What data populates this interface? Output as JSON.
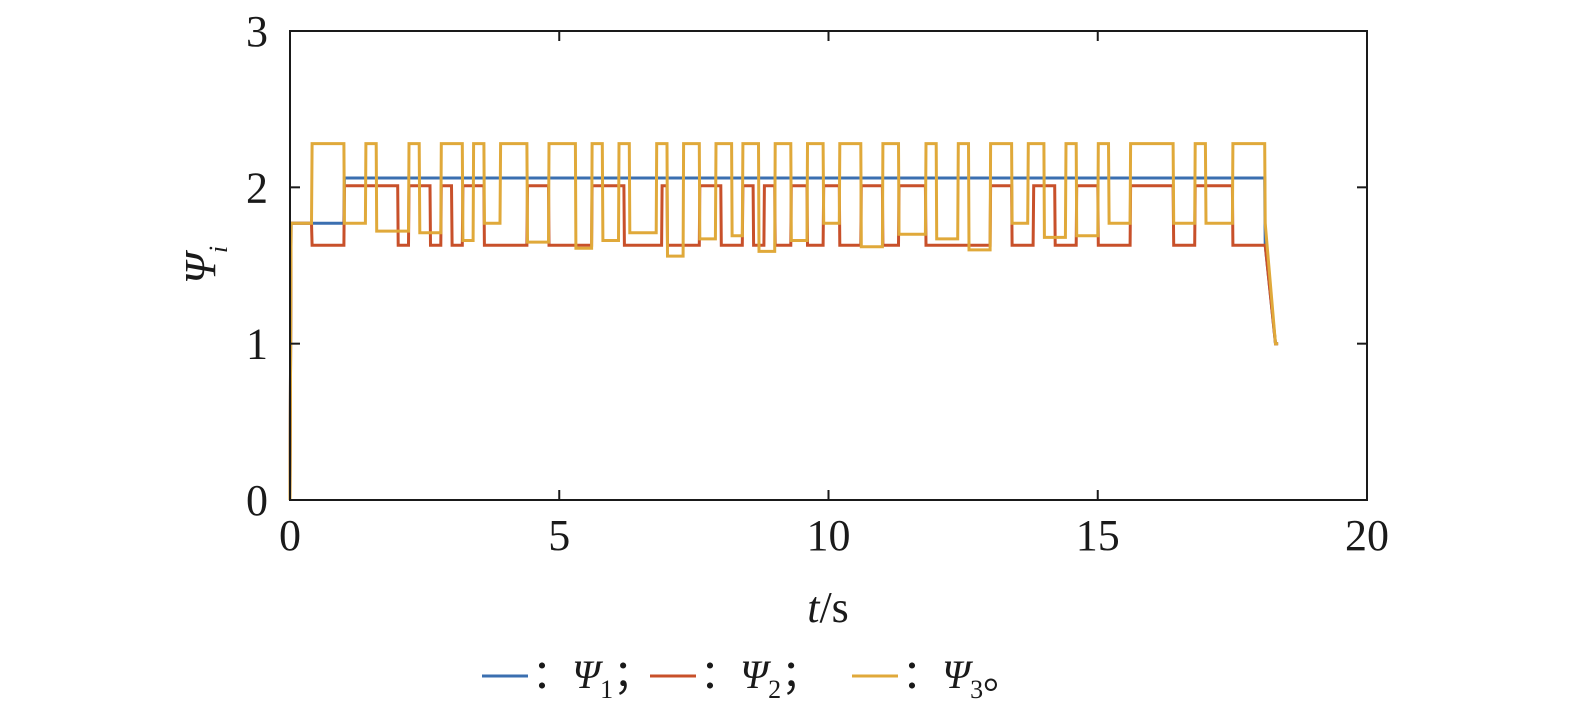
{
  "chart_data": {
    "type": "line",
    "ylabel": {
      "symbol": "Ψ",
      "sub": "i"
    },
    "xlabel": {
      "var": "t",
      "unit": "/s"
    },
    "xlim": [
      0,
      20
    ],
    "ylim": [
      0,
      3
    ],
    "xticks": [
      "0",
      "5",
      "10",
      "15",
      "20"
    ],
    "yticks": [
      "0",
      "1",
      "2",
      "3"
    ],
    "grid": false,
    "legend_position": "bottom-center",
    "series": [
      {
        "name": "Ψ1",
        "color": "#3b6fb0",
        "legend": {
          "prefix": "：",
          "symbol": "Ψ",
          "sub": "1",
          "suffix": "；"
        },
        "x": [
          0,
          0.02,
          0.4,
          1.0,
          1.01,
          2.0,
          2.01,
          2.6,
          2.61,
          3.0,
          3.01,
          3.6,
          3.61,
          4.8,
          4.81,
          6.2,
          6.21,
          7.0,
          7.01,
          8.0,
          8.01,
          8.6,
          8.61,
          9.0,
          9.01,
          9.6,
          9.61,
          9.9,
          9.91,
          10.2,
          10.21,
          11.8,
          11.81,
          13.0,
          13.01,
          13.4,
          13.41,
          14.2,
          14.21,
          15.0,
          15.01,
          15.6,
          15.61,
          16.8,
          16.81,
          17.5,
          17.51,
          18.1,
          18.11,
          18.3,
          18.35
        ],
        "y": [
          0,
          1.77,
          1.77,
          1.77,
          2.06,
          2.06,
          2.06,
          2.06,
          2.06,
          2.06,
          2.06,
          2.06,
          2.06,
          2.06,
          2.06,
          2.06,
          2.06,
          2.06,
          2.06,
          2.06,
          2.06,
          2.06,
          2.06,
          2.06,
          2.06,
          2.06,
          2.06,
          2.06,
          2.06,
          2.06,
          2.06,
          2.06,
          2.06,
          2.06,
          2.06,
          2.06,
          2.06,
          2.06,
          2.06,
          2.06,
          2.06,
          2.06,
          2.06,
          2.06,
          2.06,
          2.06,
          2.06,
          2.06,
          1.63,
          1.0,
          1.0
        ]
      },
      {
        "name": "Ψ2",
        "color": "#c8502a",
        "legend": {
          "prefix": "：",
          "symbol": "Ψ",
          "sub": "2",
          "suffix": "；"
        },
        "x": [
          0,
          0.02,
          0.4,
          0.41,
          1.0,
          1.01,
          2.0,
          2.01,
          2.2,
          2.21,
          2.6,
          2.61,
          2.8,
          2.81,
          3.0,
          3.01,
          3.2,
          3.21,
          3.6,
          3.61,
          4.4,
          4.41,
          4.8,
          4.81,
          5.6,
          5.61,
          6.2,
          6.21,
          6.9,
          6.91,
          7.0,
          7.01,
          7.6,
          7.61,
          8.0,
          8.01,
          8.4,
          8.41,
          8.6,
          8.61,
          8.8,
          8.81,
          9.0,
          9.01,
          9.3,
          9.31,
          9.6,
          9.61,
          9.9,
          9.91,
          10.2,
          10.21,
          10.6,
          10.61,
          11.0,
          11.01,
          11.3,
          11.31,
          11.8,
          11.81,
          13.0,
          13.01,
          13.4,
          13.41,
          13.8,
          13.81,
          14.2,
          14.21,
          14.6,
          14.61,
          15.0,
          15.01,
          15.6,
          15.61,
          16.4,
          16.41,
          16.8,
          16.81,
          17.5,
          17.51,
          18.1,
          18.11,
          18.3,
          18.35
        ],
        "y": [
          0,
          1.77,
          1.77,
          1.63,
          1.63,
          2.01,
          2.01,
          1.63,
          1.63,
          2.01,
          2.01,
          1.63,
          1.63,
          2.01,
          2.01,
          1.63,
          1.63,
          2.01,
          2.01,
          1.63,
          1.63,
          2.01,
          2.01,
          1.63,
          1.63,
          2.01,
          2.01,
          1.63,
          1.63,
          2.01,
          2.01,
          1.63,
          1.63,
          2.01,
          2.01,
          1.63,
          1.63,
          2.01,
          2.01,
          1.63,
          1.63,
          2.01,
          2.01,
          1.63,
          1.63,
          2.01,
          2.01,
          1.63,
          1.63,
          2.01,
          2.01,
          1.63,
          1.63,
          2.01,
          2.01,
          1.63,
          1.63,
          2.01,
          2.01,
          1.63,
          1.63,
          2.01,
          2.01,
          1.63,
          1.63,
          2.01,
          2.01,
          1.63,
          1.63,
          2.01,
          2.01,
          1.63,
          1.63,
          2.01,
          2.01,
          1.63,
          1.63,
          2.01,
          2.01,
          1.63,
          1.63,
          1.63,
          1.0,
          1.0
        ]
      },
      {
        "name": "Ψ3",
        "color": "#e0a93a",
        "legend": {
          "prefix": "：",
          "symbol": "Ψ",
          "sub": "3",
          "suffix": "。"
        },
        "x": [
          0,
          0.02,
          0.4,
          0.41,
          1.0,
          1.01,
          1.4,
          1.41,
          1.6,
          1.61,
          2.2,
          2.21,
          2.4,
          2.41,
          2.8,
          2.81,
          3.2,
          3.21,
          3.4,
          3.41,
          3.6,
          3.61,
          3.9,
          3.91,
          4.4,
          4.41,
          4.8,
          4.81,
          5.3,
          5.31,
          5.6,
          5.61,
          5.8,
          5.81,
          6.1,
          6.11,
          6.3,
          6.31,
          6.8,
          6.81,
          7.0,
          7.01,
          7.3,
          7.31,
          7.6,
          7.61,
          7.9,
          7.91,
          8.2,
          8.21,
          8.4,
          8.41,
          8.7,
          8.71,
          9.0,
          9.01,
          9.3,
          9.31,
          9.6,
          9.61,
          9.9,
          9.91,
          10.2,
          10.21,
          10.6,
          10.61,
          11.0,
          11.01,
          11.3,
          11.31,
          11.8,
          11.81,
          12.0,
          12.01,
          12.4,
          12.41,
          12.6,
          12.61,
          13.0,
          13.01,
          13.4,
          13.41,
          13.7,
          13.71,
          14.0,
          14.01,
          14.4,
          14.41,
          14.6,
          14.61,
          15.0,
          15.01,
          15.2,
          15.21,
          15.6,
          15.61,
          16.4,
          16.41,
          16.8,
          16.81,
          17.0,
          17.01,
          17.5,
          17.51,
          18.1,
          18.11,
          18.3,
          18.35
        ],
        "y": [
          0,
          1.77,
          1.77,
          2.28,
          2.28,
          1.77,
          1.77,
          2.28,
          2.28,
          1.72,
          1.72,
          2.28,
          2.28,
          1.71,
          1.71,
          2.28,
          2.28,
          1.66,
          1.66,
          2.28,
          2.28,
          1.77,
          1.77,
          2.28,
          2.28,
          1.65,
          1.65,
          2.28,
          2.28,
          1.61,
          1.61,
          2.28,
          2.28,
          1.66,
          1.66,
          2.28,
          2.28,
          1.71,
          1.71,
          2.28,
          2.28,
          1.56,
          1.56,
          2.28,
          2.28,
          1.67,
          1.67,
          2.28,
          2.28,
          1.69,
          1.69,
          2.28,
          2.28,
          1.59,
          1.59,
          2.28,
          2.28,
          1.66,
          1.66,
          2.28,
          2.28,
          1.77,
          1.77,
          2.28,
          2.28,
          1.62,
          1.62,
          2.28,
          2.28,
          1.7,
          1.7,
          2.28,
          2.28,
          1.67,
          1.67,
          2.28,
          2.28,
          1.6,
          1.6,
          2.28,
          2.28,
          1.77,
          1.77,
          2.28,
          2.28,
          1.68,
          1.68,
          2.28,
          2.28,
          1.69,
          1.69,
          2.28,
          2.28,
          1.77,
          1.77,
          2.28,
          2.28,
          1.77,
          1.77,
          2.28,
          2.28,
          1.77,
          1.77,
          2.28,
          2.28,
          1.77,
          1.0,
          1.0
        ]
      }
    ]
  }
}
